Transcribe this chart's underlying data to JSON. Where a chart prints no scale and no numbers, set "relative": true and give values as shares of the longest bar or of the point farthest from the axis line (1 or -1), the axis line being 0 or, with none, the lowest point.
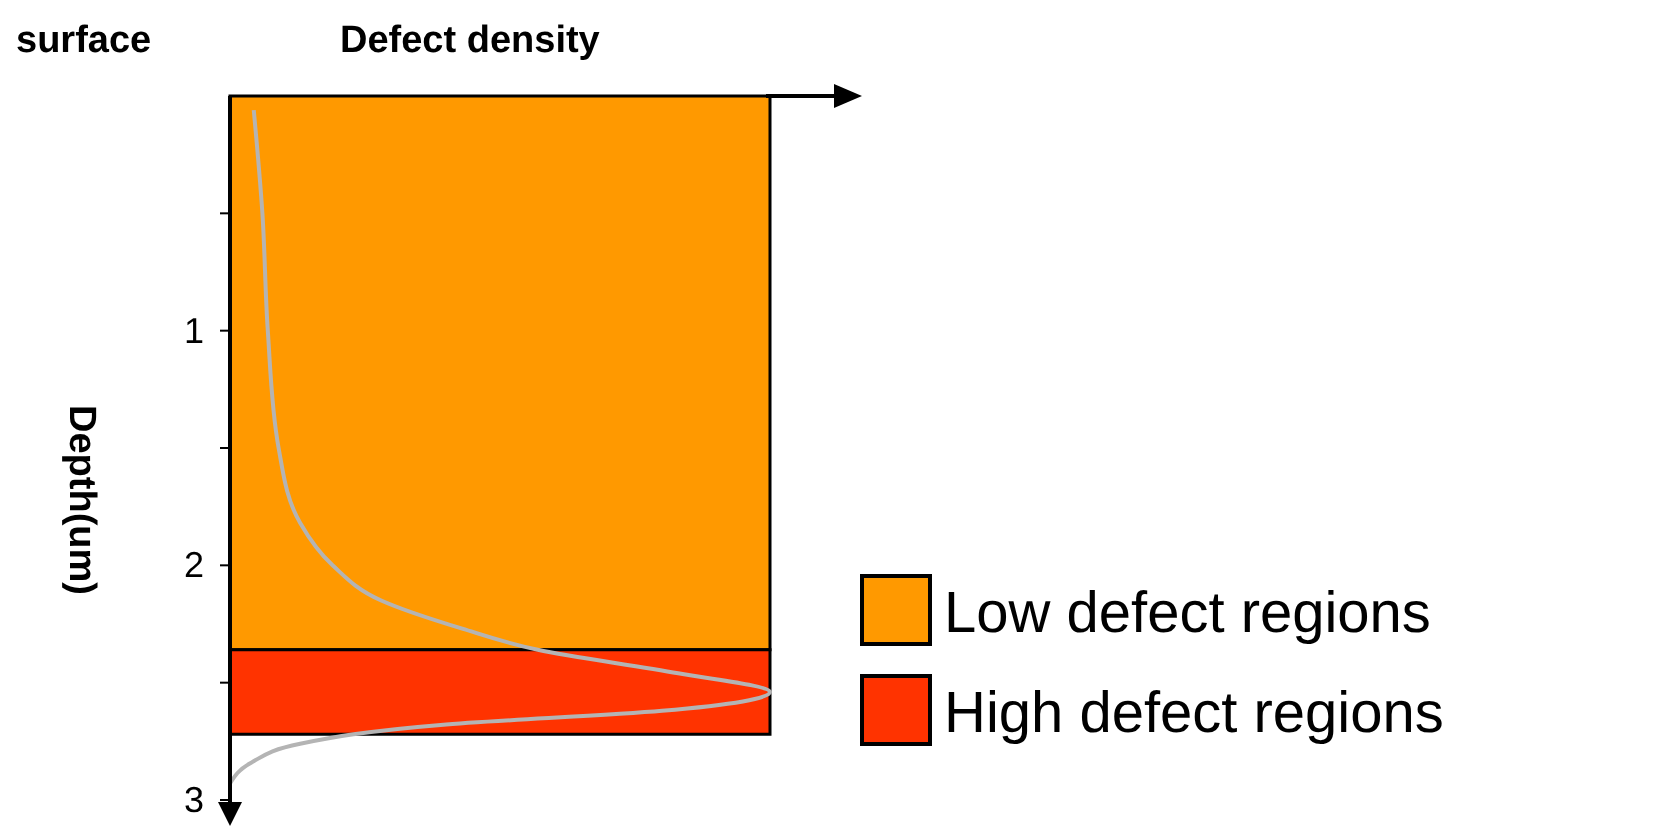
{
  "chart_data": {
    "type": "line",
    "orientation": "horizontal",
    "relative": true,
    "xlabel": "Defect density",
    "ylabel": "Depth(um)",
    "annotations": [
      "surface"
    ],
    "x": [
      0.06,
      0.5,
      1,
      1.5,
      1.82,
      2,
      2.15,
      2.27,
      2.36,
      2.46,
      2.54,
      2.62,
      2.68,
      2.76,
      2.84,
      2.93
    ],
    "series": [
      {
        "color": "#b4b4b4",
        "values": [
          0.044,
          0.06,
          0.07,
          0.09,
          0.13,
          0.19,
          0.28,
          0.43,
          0.57,
          0.83,
          1,
          0.8,
          0.39,
          0.13,
          0.04,
          0
        ]
      }
    ],
    "ylim": [
      3,
      0
    ],
    "yticks": [
      {
        "value": 0.5,
        "label": null
      },
      1,
      {
        "value": 1.5,
        "label": null
      },
      2,
      {
        "value": 2.5,
        "label": null
      },
      3
    ],
    "bands": [
      {
        "axis": "y",
        "from": 0,
        "to": 2.36,
        "label": "Low defect regions",
        "color": "#ff9900"
      },
      {
        "axis": "y",
        "from": 2.36,
        "to": 2.72,
        "label": "High defect regions",
        "color": "#ff3300"
      }
    ],
    "legend": "right",
    "grid": false,
    "marker": "none",
    "line_style": "solid"
  }
}
